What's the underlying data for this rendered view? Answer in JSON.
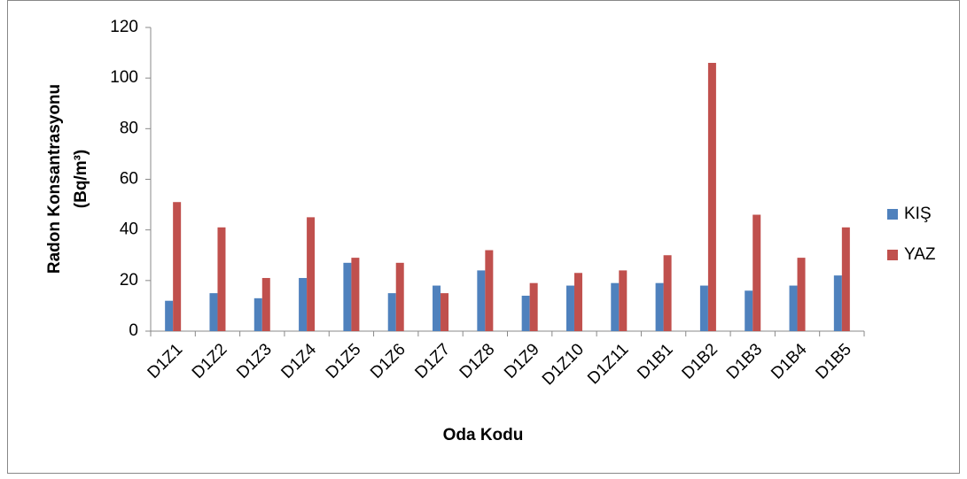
{
  "chart_data": {
    "type": "bar",
    "x_label": "Oda Kodu",
    "y_label": [
      "Radon Konsantrasyonu",
      "(Bq/m³)"
    ],
    "categories": [
      "D1Z1",
      "D1Z2",
      "D1Z3",
      "D1Z4",
      "D1Z5",
      "D1Z6",
      "D1Z7",
      "D1Z8",
      "D1Z9",
      "D1Z10",
      "D1Z11",
      "D1B1",
      "D1B2",
      "D1B3",
      "D1B4",
      "D1B5"
    ],
    "series": [
      {
        "name": "KIŞ",
        "color": "#4f81bd",
        "values": [
          12,
          15,
          13,
          21,
          27,
          15,
          18,
          24,
          14,
          18,
          19,
          19,
          18,
          16,
          18,
          22
        ]
      },
      {
        "name": "YAZ",
        "color": "#c0504d",
        "values": [
          51,
          41,
          21,
          45,
          29,
          27,
          15,
          32,
          19,
          23,
          24,
          30,
          106,
          46,
          29,
          41
        ]
      }
    ],
    "ylim": [
      0,
      120
    ],
    "yticks": [
      0,
      20,
      40,
      60,
      80,
      100,
      120
    ],
    "grid": false,
    "legend": "right"
  }
}
